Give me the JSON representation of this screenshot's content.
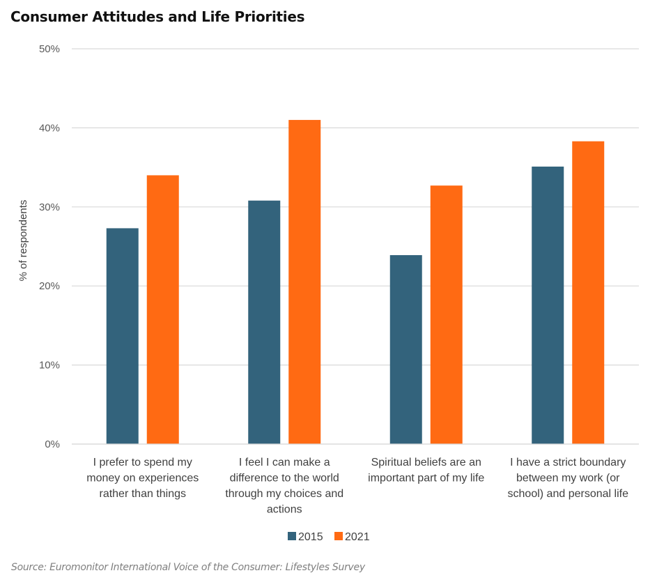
{
  "title": "Consumer Attitudes and Life Priorities",
  "source": "Source: Euromonitor International Voice of the Consumer: Lifestyles Survey",
  "colors": {
    "2015": "#33637C",
    "2021": "#FF6A13",
    "grid": "#D9D9D9"
  },
  "chart_data": {
    "type": "bar",
    "title": "Consumer Attitudes and Life Priorities",
    "xlabel": "",
    "ylabel": "% of respondents",
    "ylim": [
      0,
      50
    ],
    "yticks": [
      0,
      10,
      20,
      30,
      40,
      50
    ],
    "ytick_labels": [
      "0%",
      "10%",
      "20%",
      "30%",
      "40%",
      "50%"
    ],
    "grid": true,
    "legend_position": "bottom",
    "categories": [
      [
        "I prefer to spend my",
        "money on experiences",
        "rather than things"
      ],
      [
        "I feel I can make a",
        "difference to the world",
        "through my choices and",
        "actions"
      ],
      [
        "Spiritual beliefs are an",
        "important part of my life"
      ],
      [
        "I have a strict boundary",
        "between my work (or",
        "school) and personal life"
      ]
    ],
    "series": [
      {
        "name": "2015",
        "values": [
          27.3,
          30.8,
          23.9,
          35.1
        ]
      },
      {
        "name": "2021",
        "values": [
          34.0,
          41.0,
          32.7,
          38.3
        ]
      }
    ]
  }
}
